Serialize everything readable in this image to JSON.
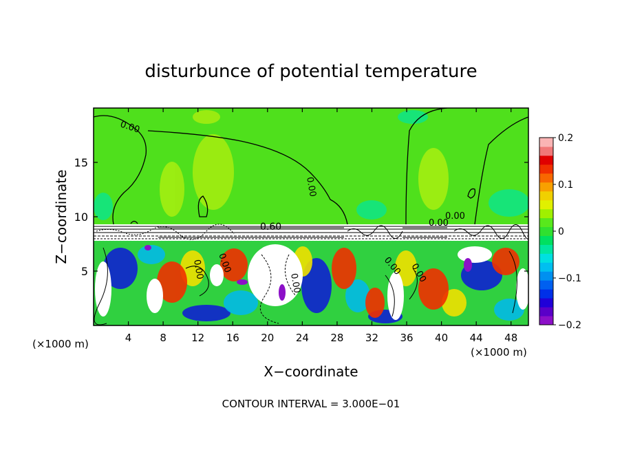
{
  "chart_data": {
    "type": "heatmap",
    "title": "disturbunce of potential temperature",
    "xlabel": "X−coordinate",
    "ylabel": "Z−coordinate",
    "x_unit": "(×1000 m)",
    "z_unit": "(×1000 m)",
    "xlim": [
      0,
      50
    ],
    "ylim": [
      0,
      20
    ],
    "x_ticks": [
      4,
      8,
      12,
      16,
      20,
      24,
      28,
      32,
      36,
      40,
      44,
      48
    ],
    "y_ticks": [
      5,
      10,
      15
    ],
    "colorbar": {
      "range": [
        -0.2,
        0.2
      ],
      "ticks": [
        "0.2",
        "0.1",
        "0",
        "−0.1",
        "−0.2"
      ],
      "tick_values": [
        0.2,
        0.1,
        0,
        -0.1,
        -0.2
      ],
      "colors": [
        "#8c10c8",
        "#5a00c8",
        "#2000d8",
        "#0030e8",
        "#0060f0",
        "#0090f0",
        "#00bff0",
        "#00e0e0",
        "#00e6a0",
        "#00e060",
        "#30e030",
        "#58e81c",
        "#a0f000",
        "#e0f000",
        "#f0d000",
        "#f8a000",
        "#f86800",
        "#f03000",
        "#e00000",
        "#f07878",
        "#fab4b4"
      ]
    },
    "contour_labels": [
      "0.00",
      "0.00",
      "0.00",
      "0.60",
      "0.00",
      "0.00",
      "0.00",
      "0.00",
      "0.00",
      "0.00"
    ],
    "contour_interval_text": "CONTOUR INTERVAL = 3.000E−01"
  }
}
